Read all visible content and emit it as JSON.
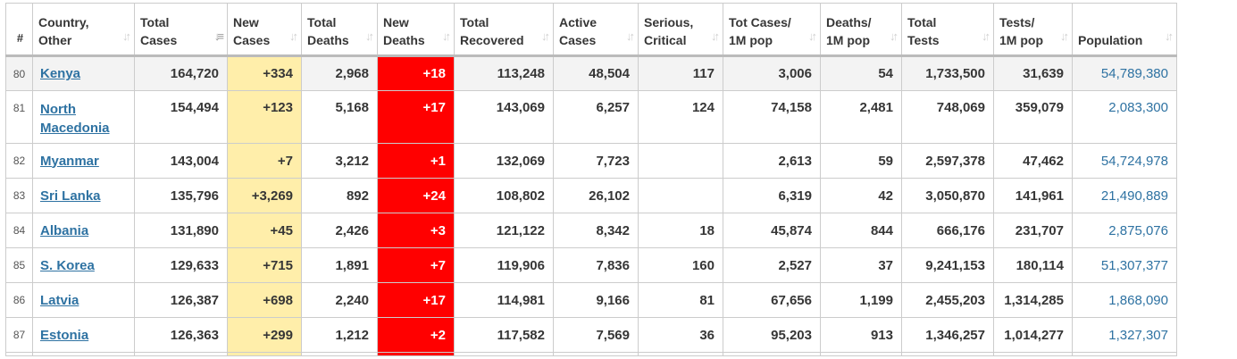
{
  "headers": [
    {
      "key": "rank",
      "line1": "#",
      "line2": ""
    },
    {
      "key": "country",
      "line1": "Country,",
      "line2": "Other"
    },
    {
      "key": "total_cases",
      "line1": "Total",
      "line2": "Cases"
    },
    {
      "key": "new_cases",
      "line1": "New",
      "line2": "Cases"
    },
    {
      "key": "total_deaths",
      "line1": "Total",
      "line2": "Deaths"
    },
    {
      "key": "new_deaths",
      "line1": "New",
      "line2": "Deaths"
    },
    {
      "key": "total_recovered",
      "line1": "Total",
      "line2": "Recovered"
    },
    {
      "key": "active_cases",
      "line1": "Active",
      "line2": "Cases"
    },
    {
      "key": "serious_critical",
      "line1": "Serious,",
      "line2": "Critical"
    },
    {
      "key": "tot_cases_1m",
      "line1": "Tot Cases/",
      "line2": "1M pop"
    },
    {
      "key": "deaths_1m",
      "line1": "Deaths/",
      "line2": "1M pop"
    },
    {
      "key": "total_tests",
      "line1": "Total",
      "line2": "Tests"
    },
    {
      "key": "tests_1m",
      "line1": "Tests/",
      "line2": "1M pop"
    },
    {
      "key": "population",
      "line1": "Population",
      "line2": ""
    }
  ],
  "sort": {
    "column": "total_cases",
    "direction": "desc"
  },
  "icons": {
    "sort_inactive": "sort-updown-icon",
    "sort_desc": "sort-desc-icon"
  },
  "colors": {
    "new_cases_bg": "#ffeeaa",
    "new_deaths_bg": "#ff0000",
    "link": "#2e72a2"
  },
  "rows": [
    {
      "rank": "80",
      "country": "Kenya",
      "total_cases": "164,720",
      "new_cases": "+334",
      "total_deaths": "2,968",
      "new_deaths": "+18",
      "total_recovered": "113,248",
      "active_cases": "48,504",
      "serious_critical": "117",
      "tot_cases_1m": "3,006",
      "deaths_1m": "54",
      "total_tests": "1,733,500",
      "tests_1m": "31,639",
      "population": "54,789,380"
    },
    {
      "rank": "81",
      "country_line1": "North",
      "country_line2": "Macedonia",
      "total_cases": "154,494",
      "new_cases": "+123",
      "total_deaths": "5,168",
      "new_deaths": "+17",
      "total_recovered": "143,069",
      "active_cases": "6,257",
      "serious_critical": "124",
      "tot_cases_1m": "74,158",
      "deaths_1m": "2,481",
      "total_tests": "748,069",
      "tests_1m": "359,079",
      "population": "2,083,300"
    },
    {
      "rank": "82",
      "country": "Myanmar",
      "total_cases": "143,004",
      "new_cases": "+7",
      "total_deaths": "3,212",
      "new_deaths": "+1",
      "total_recovered": "132,069",
      "active_cases": "7,723",
      "serious_critical": "",
      "tot_cases_1m": "2,613",
      "deaths_1m": "59",
      "total_tests": "2,597,378",
      "tests_1m": "47,462",
      "population": "54,724,978"
    },
    {
      "rank": "83",
      "country": "Sri Lanka",
      "total_cases": "135,796",
      "new_cases": "+3,269",
      "total_deaths": "892",
      "new_deaths": "+24",
      "total_recovered": "108,802",
      "active_cases": "26,102",
      "serious_critical": "",
      "tot_cases_1m": "6,319",
      "deaths_1m": "42",
      "total_tests": "3,050,870",
      "tests_1m": "141,961",
      "population": "21,490,889"
    },
    {
      "rank": "84",
      "country": "Albania",
      "total_cases": "131,890",
      "new_cases": "+45",
      "total_deaths": "2,426",
      "new_deaths": "+3",
      "total_recovered": "121,122",
      "active_cases": "8,342",
      "serious_critical": "18",
      "tot_cases_1m": "45,874",
      "deaths_1m": "844",
      "total_tests": "666,176",
      "tests_1m": "231,707",
      "population": "2,875,076"
    },
    {
      "rank": "85",
      "country": "S. Korea",
      "total_cases": "129,633",
      "new_cases": "+715",
      "total_deaths": "1,891",
      "new_deaths": "+7",
      "total_recovered": "119,906",
      "active_cases": "7,836",
      "serious_critical": "160",
      "tot_cases_1m": "2,527",
      "deaths_1m": "37",
      "total_tests": "9,241,153",
      "tests_1m": "180,114",
      "population": "51,307,377"
    },
    {
      "rank": "86",
      "country": "Latvia",
      "total_cases": "126,387",
      "new_cases": "+698",
      "total_deaths": "2,240",
      "new_deaths": "+17",
      "total_recovered": "114,981",
      "active_cases": "9,166",
      "serious_critical": "81",
      "tot_cases_1m": "67,656",
      "deaths_1m": "1,199",
      "total_tests": "2,455,203",
      "tests_1m": "1,314,285",
      "population": "1,868,090"
    },
    {
      "rank": "87",
      "country": "Estonia",
      "total_cases": "126,363",
      "new_cases": "+299",
      "total_deaths": "1,212",
      "new_deaths": "+2",
      "total_recovered": "117,582",
      "active_cases": "7,569",
      "serious_critical": "36",
      "tot_cases_1m": "95,203",
      "deaths_1m": "913",
      "total_tests": "1,346,257",
      "tests_1m": "1,014,277",
      "population": "1,327,307"
    }
  ]
}
